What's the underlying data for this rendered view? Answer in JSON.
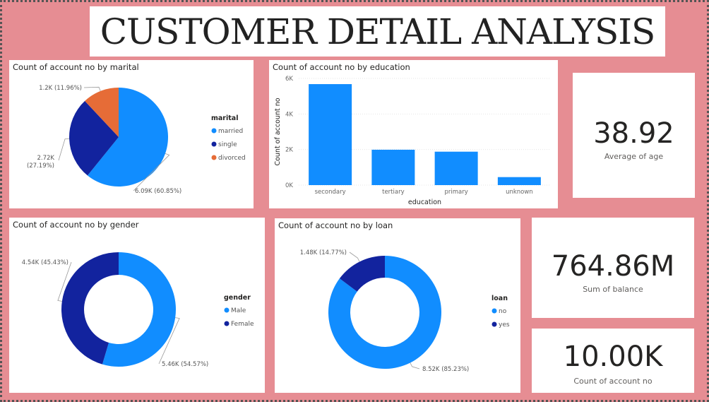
{
  "dashboard": {
    "title": "CUSTOMER DETAIL ANALYSIS"
  },
  "colors": {
    "primary": "#118dff",
    "secondary": "#12239e",
    "tertiary": "#e66c37"
  },
  "chart_data": [
    {
      "id": "marital",
      "type": "pie",
      "title": "Count of account no by marital",
      "legend_title": "marital",
      "categories": [
        "married",
        "single",
        "divorced"
      ],
      "values": [
        6090,
        2720,
        1200
      ],
      "labels": [
        "6.09K (60.85%)",
        "2.72K (27.19%)",
        "1.2K (11.96%)"
      ],
      "colors": [
        "#118dff",
        "#12239e",
        "#e66c37"
      ],
      "legend_position": "right"
    },
    {
      "id": "education",
      "type": "bar",
      "title": "Count of account no by education",
      "categories": [
        "secondary",
        "tertiary",
        "primary",
        "unknown"
      ],
      "values": [
        5680,
        1990,
        1880,
        450
      ],
      "xlabel": "education",
      "ylabel": "Count of account no",
      "ylim": [
        0,
        6000
      ],
      "yticks": [
        "0K",
        "2K",
        "4K",
        "6K"
      ],
      "grid": true,
      "color": "#118dff"
    },
    {
      "id": "gender",
      "type": "donut",
      "title": "Count of account no by gender",
      "legend_title": "gender",
      "categories": [
        "Male",
        "Female"
      ],
      "values": [
        5460,
        4540
      ],
      "labels": [
        "5.46K (54.57%)",
        "4.54K (45.43%)"
      ],
      "colors": [
        "#118dff",
        "#12239e"
      ],
      "legend_position": "right"
    },
    {
      "id": "loan",
      "type": "donut",
      "title": "Count of account no by loan",
      "legend_title": "loan",
      "categories": [
        "no",
        "yes"
      ],
      "values": [
        8520,
        1480
      ],
      "labels": [
        "8.52K (85.23%)",
        "1.48K (14.77%)"
      ],
      "colors": [
        "#118dff",
        "#12239e"
      ],
      "legend_position": "right"
    }
  ],
  "kpis": {
    "age": {
      "value": "38.92",
      "label": "Average of age"
    },
    "balance": {
      "value": "764.86M",
      "label": "Sum of balance"
    },
    "count": {
      "value": "10.00K",
      "label": "Count of account no"
    }
  }
}
